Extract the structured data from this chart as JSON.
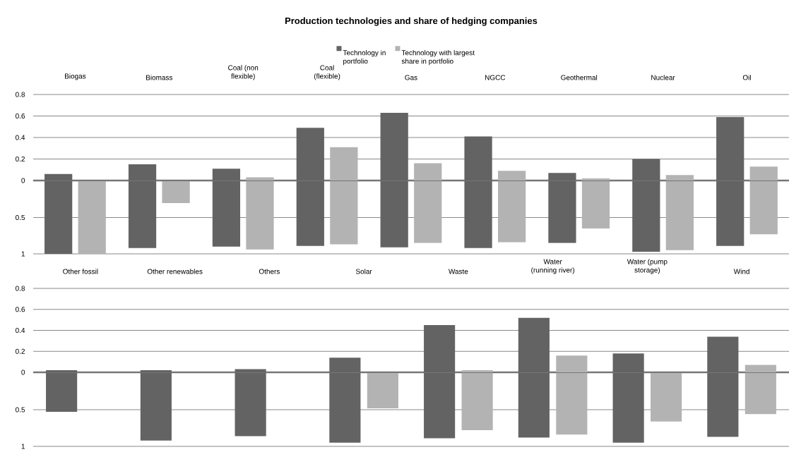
{
  "chart_data": [
    {
      "type": "bar",
      "title": "Production technologies and share of hedging companies",
      "categories": [
        "Biogas",
        "Biomass",
        "Coal (non flexible)",
        "Coal (flexible)",
        "Gas",
        "NGCC",
        "Geothermal",
        "Nuclear",
        "Oil"
      ],
      "series": [
        {
          "name": "Technology in portfolio",
          "color": "#636363",
          "values": [
            0.06,
            0.15,
            0.11,
            0.49,
            0.63,
            0.41,
            0.07,
            0.2,
            0.59
          ]
        },
        {
          "name": "Technology with largest share in portfolio",
          "color": "#b3b3b3",
          "values": [
            0,
            null,
            0.03,
            0.31,
            0.16,
            0.09,
            0.02,
            0.05,
            0.13
          ]
        }
      ],
      "ylim": [
        0,
        0.8
      ],
      "yticks": [
        0,
        0.2,
        0.4,
        0.6,
        0.8
      ],
      "grid": "y",
      "legend": "top"
    },
    {
      "type": "bar",
      "categories": [
        null,
        null,
        null,
        null,
        null,
        null,
        null,
        null,
        null
      ],
      "series": [
        {
          "color": "#636363",
          "values": [
            1.0,
            0.92,
            0.9,
            0.89,
            0.91,
            0.92,
            0.85,
            0.97,
            0.89
          ]
        },
        {
          "color": "#b3b3b3",
          "values": [
            1.0,
            0.3,
            0.94,
            0.87,
            0.85,
            0.84,
            0.65,
            0.95,
            0.73
          ]
        }
      ],
      "ylim": [
        1,
        0
      ],
      "yticks": [
        0.5,
        1
      ],
      "grid": "y",
      "tick_labels": "y"
    },
    {
      "type": "bar",
      "categories": [
        "Other fossil",
        "Other renewables",
        "Others",
        "Solar",
        "Waste",
        "Water (running river)",
        "Water (pump storage)",
        "Wind"
      ],
      "series": [
        {
          "color": "#636363",
          "values": [
            0.02,
            0.02,
            0.03,
            0.14,
            0.45,
            0.52,
            0.18,
            0.34
          ]
        },
        {
          "color": "#b3b3b3",
          "values": [
            null,
            null,
            null,
            0,
            0.02,
            0.16,
            0,
            0.07
          ]
        }
      ],
      "ylim": [
        0,
        0.8
      ],
      "yticks": [
        0,
        0.2,
        0.4,
        0.6,
        0.8
      ],
      "grid": "y"
    },
    {
      "type": "bar",
      "categories": [
        null,
        null,
        null,
        null,
        null,
        null,
        null,
        null
      ],
      "series": [
        {
          "color": "#636363",
          "values": [
            0.53,
            0.92,
            0.86,
            0.95,
            0.89,
            0.88,
            0.95,
            0.87
          ]
        },
        {
          "color": "#b3b3b3",
          "values": [
            null,
            null,
            null,
            0.48,
            0.78,
            0.84,
            0.66,
            0.56
          ]
        }
      ],
      "ylim": [
        1,
        0
      ],
      "yticks": [
        0.5,
        1
      ],
      "grid": "y",
      "tick_labels": "y"
    }
  ]
}
